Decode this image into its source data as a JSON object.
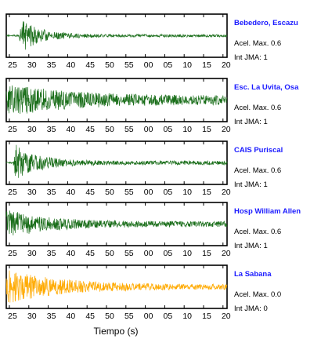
{
  "chart_data": {
    "type": "line",
    "xlabel": "Tiempo (s)",
    "tick_labels": [
      "25",
      "30",
      "35",
      "40",
      "45",
      "50",
      "55",
      "00",
      "05",
      "10",
      "15",
      "20"
    ],
    "amp_label": "Acel. Max.",
    "jma_label": "Int JMA:",
    "colors": {
      "station_name": "#1a1aff",
      "trace_green": "#1a6e1a",
      "trace_orange": "#ffaa00"
    },
    "panels": [
      {
        "station": "Bebedero, Escazu",
        "acel_max": "0.6",
        "int_jma": "1",
        "color": "#1a6e1a",
        "onset": 27.5,
        "peak": 0.95,
        "decay": 5,
        "sustain": 0.07,
        "seed": 11
      },
      {
        "station": "Esc. La Uvita, Osa",
        "acel_max": "0.6",
        "int_jma": "1",
        "color": "#1a6e1a",
        "onset": 23.0,
        "peak": 0.9,
        "decay": 16,
        "sustain": 0.22,
        "seed": 23
      },
      {
        "station": "CAIS Puriscal",
        "acel_max": "0.6",
        "int_jma": "1",
        "color": "#1a6e1a",
        "onset": 26.0,
        "peak": 0.95,
        "decay": 6,
        "sustain": 0.1,
        "seed": 37
      },
      {
        "station": "Hosp William Allen",
        "acel_max": "0.6",
        "int_jma": "1",
        "color": "#1a6e1a",
        "onset": 23.0,
        "peak": 0.85,
        "decay": 10,
        "sustain": 0.14,
        "seed": 53
      },
      {
        "station": "La Sabana",
        "acel_max": "0.0",
        "int_jma": "0",
        "color": "#ffaa00",
        "onset": 23.0,
        "peak": 0.95,
        "decay": 14,
        "sustain": 0.12,
        "seed": 71
      }
    ]
  }
}
